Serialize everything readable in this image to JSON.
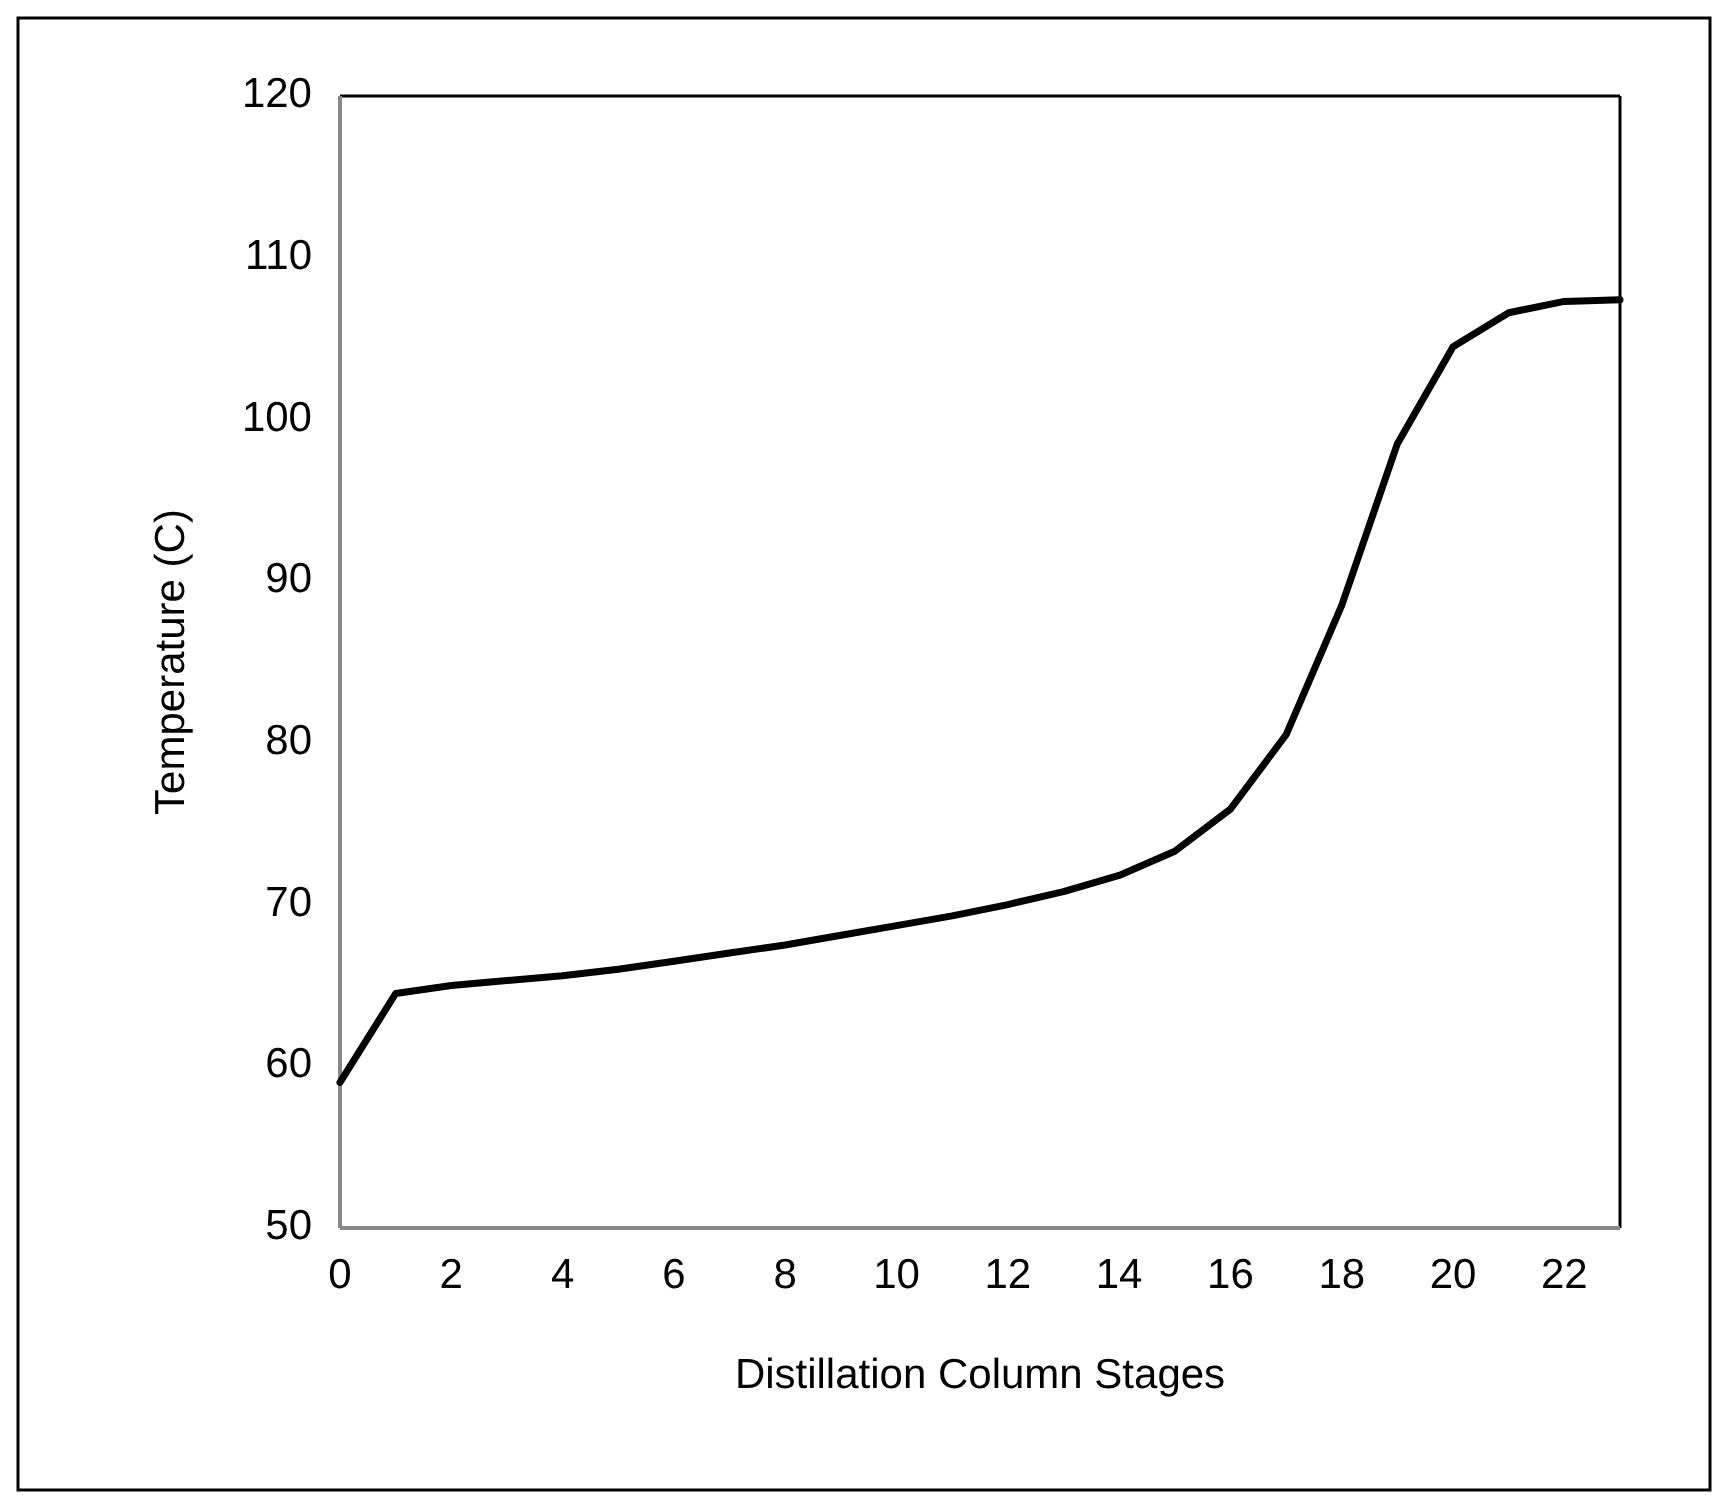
{
  "chart_data": {
    "type": "line",
    "xlabel": "Distillation Column Stages",
    "ylabel": "Temperature (C)",
    "x": [
      0,
      1,
      2,
      3,
      4,
      5,
      6,
      7,
      8,
      9,
      10,
      11,
      12,
      13,
      14,
      15,
      16,
      17,
      18,
      19,
      20,
      21,
      22,
      23
    ],
    "series": [
      {
        "color": "#000000",
        "values": [
          59,
          64.5,
          65,
          65.3,
          65.6,
          66,
          66.5,
          67,
          67.5,
          68.1,
          68.7,
          69.3,
          70,
          70.8,
          71.8,
          73.3,
          75.9,
          80.5,
          88.5,
          98.5,
          104.5,
          106.6,
          107.3,
          107.4
        ]
      }
    ],
    "xlim": [
      0,
      23
    ],
    "xticks": [
      0,
      2,
      4,
      6,
      8,
      10,
      12,
      14,
      16,
      18,
      20,
      22
    ],
    "ylim": [
      50,
      120
    ],
    "yticks": [
      50,
      60,
      70,
      80,
      90,
      100,
      110,
      120
    ],
    "grid": false,
    "marker": "none",
    "line_style": "solid"
  }
}
